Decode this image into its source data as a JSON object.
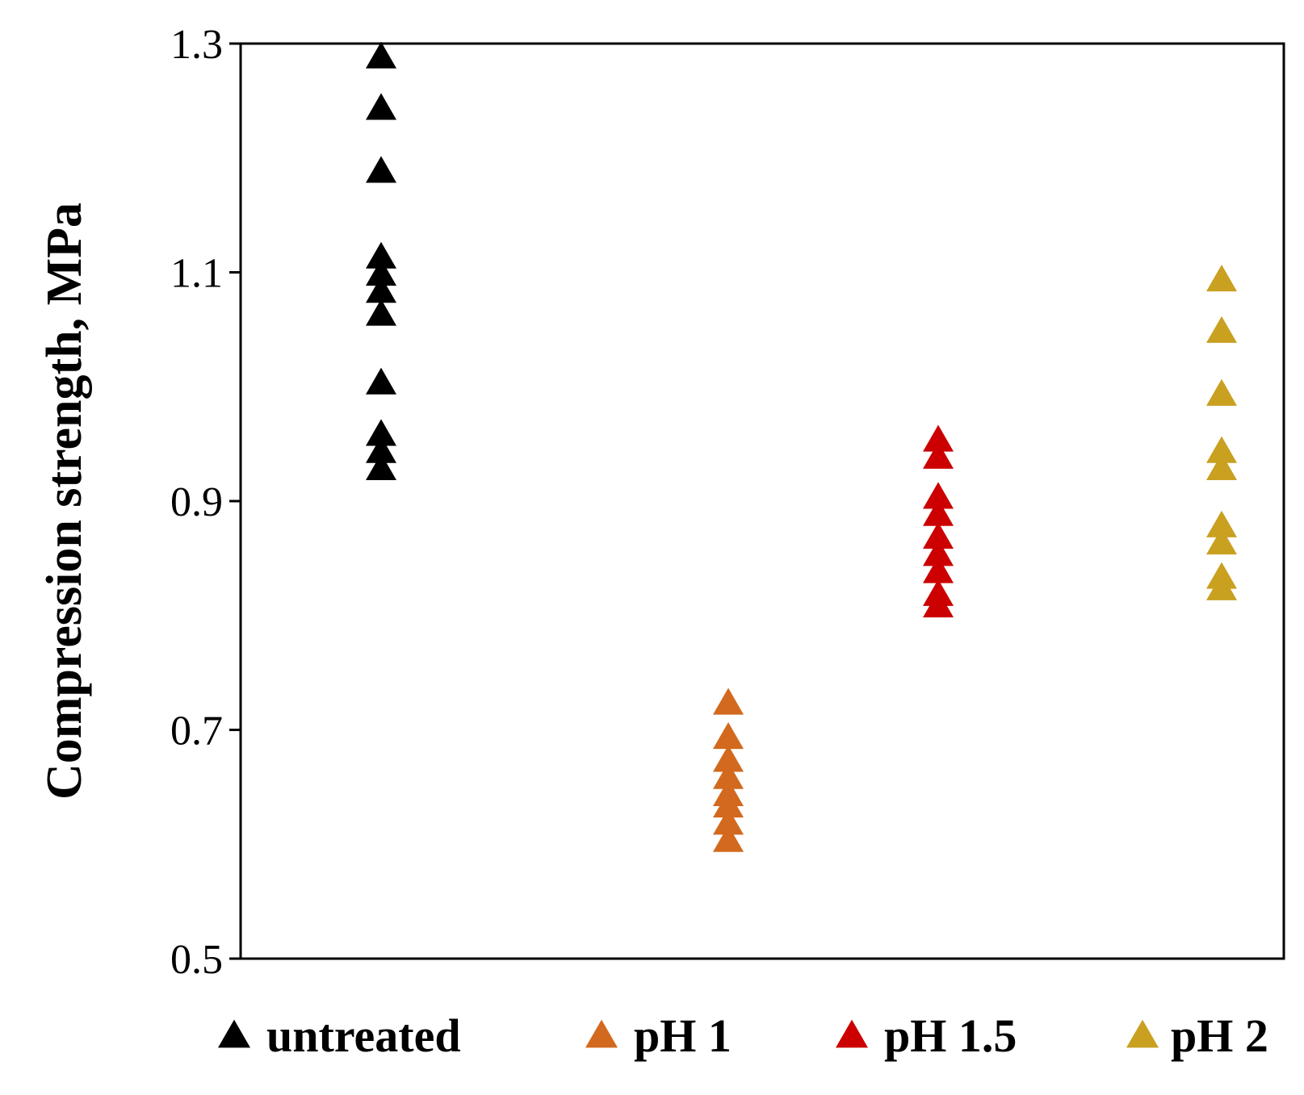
{
  "chart_data": {
    "type": "scatter",
    "title": "",
    "xlabel": "",
    "ylabel": "Compression strength, MPa",
    "ylim": [
      0.5,
      1.3
    ],
    "yticks": [
      "0.5",
      "0.7",
      "0.9",
      "1.1",
      "1.3"
    ],
    "grid": false,
    "legend_position": "bottom",
    "marker": "triangle",
    "series": [
      {
        "name": "untreated",
        "color": "#000000",
        "x": 1,
        "values": [
          1.29,
          1.245,
          1.19,
          1.115,
          1.1,
          1.085,
          1.065,
          1.005,
          0.96,
          0.945,
          0.93
        ]
      },
      {
        "name": "pH 1",
        "color": "#D2691E",
        "x": 2,
        "values": [
          0.725,
          0.695,
          0.675,
          0.66,
          0.645,
          0.635,
          0.62,
          0.605
        ]
      },
      {
        "name": "pH 1.5",
        "color": "#CC0000",
        "x": 3,
        "values": [
          0.955,
          0.94,
          0.905,
          0.89,
          0.87,
          0.855,
          0.84,
          0.82,
          0.81
        ]
      },
      {
        "name": "pH 2",
        "color": "#C9A020",
        "x": 4,
        "values": [
          1.095,
          1.05,
          0.995,
          0.945,
          0.93,
          0.88,
          0.865,
          0.835,
          0.825
        ]
      }
    ]
  }
}
